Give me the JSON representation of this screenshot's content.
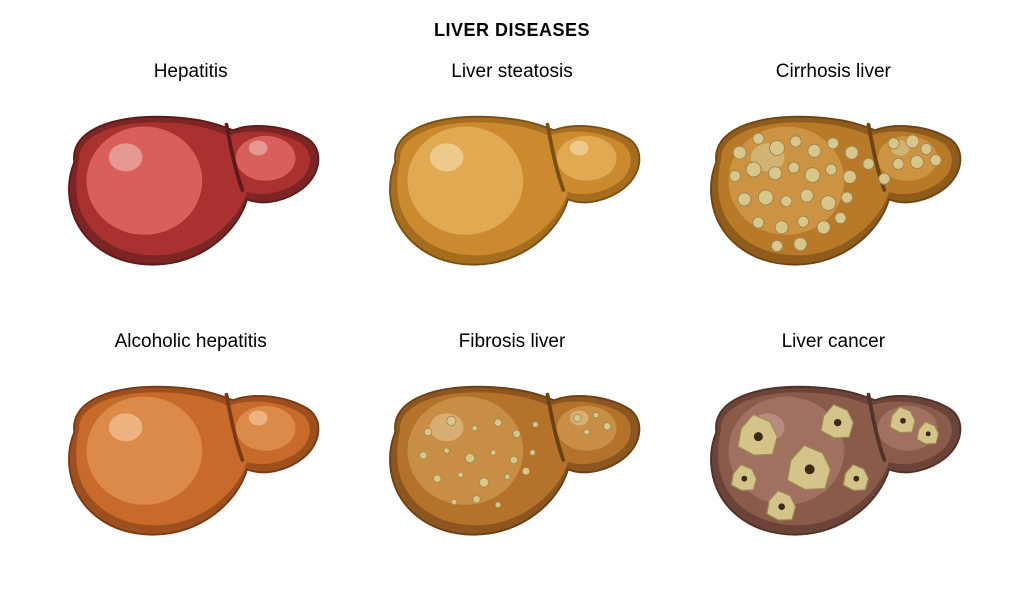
{
  "type": "infographic",
  "title": "LIVER DISEASES",
  "title_fontsize": 18,
  "title_weight": "bold",
  "label_fontsize": 19,
  "background_color": "#ffffff",
  "text_color": "#000000",
  "grid": {
    "cols": 3,
    "rows": 2
  },
  "cells": [
    {
      "id": "hepatitis",
      "label": "Hepatitis",
      "base_color": "#a93230",
      "dark_color": "#7c2524",
      "highlight_color": "#d9605a",
      "shine_color": "#e8a29e",
      "outline_color": "#5a1b1a",
      "pattern": "none"
    },
    {
      "id": "steatosis",
      "label": "Liver steatosis",
      "base_color": "#cc8a2e",
      "dark_color": "#a66d1f",
      "highlight_color": "#e0a952",
      "shine_color": "#f0cf96",
      "outline_color": "#7a4f16",
      "pattern": "none"
    },
    {
      "id": "cirrhosis",
      "label": "Cirrhosis liver",
      "base_color": "#b87a28",
      "dark_color": "#8f5c1c",
      "highlight_color": "#cc9442",
      "shine_color": "#d3b87c",
      "outline_color": "#6d4514",
      "pattern": "dense_nodules",
      "nodule_color": "#d9c68a",
      "nodule_outline": "#9c8452"
    },
    {
      "id": "alcoholic",
      "label": "Alcoholic hepatitis",
      "base_color": "#c76a2a",
      "dark_color": "#9e4f1e",
      "highlight_color": "#db8a4a",
      "shine_color": "#f0b88a",
      "outline_color": "#783a16",
      "pattern": "none"
    },
    {
      "id": "fibrosis",
      "label": "Fibrosis liver",
      "base_color": "#b5722a",
      "dark_color": "#8c561e",
      "highlight_color": "#c98e46",
      "shine_color": "#dcb47a",
      "outline_color": "#6a4015",
      "pattern": "sparse_nodules",
      "nodule_color": "#d9c68a",
      "nodule_outline": "#9c8452"
    },
    {
      "id": "cancer",
      "label": "Liver cancer",
      "base_color": "#8a5a4a",
      "dark_color": "#6b4338",
      "highlight_color": "#a07060",
      "shine_color": "#b89084",
      "outline_color": "#503228",
      "pattern": "tumors",
      "tumor_color": "#d4c48a",
      "tumor_outline": "#9c8c52",
      "tumor_center": "#3a2a1a"
    }
  ]
}
